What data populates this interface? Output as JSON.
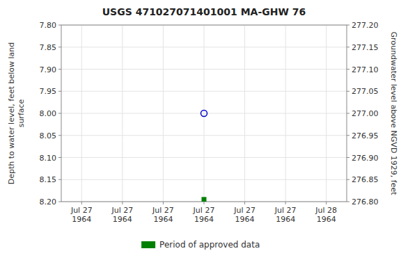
{
  "chart_data": {
    "type": "scatter",
    "title": "USGS 471027071401001 MA-GHW   76",
    "y_label": "Depth to water level, feet below land\n surface",
    "y2_label": "Groundwater level above NGVD 1929, feet",
    "categories": [
      "Jul 27\n1964",
      "Jul 27\n1964",
      "Jul 27\n1964",
      "Jul 27\n1964",
      "Jul 27\n1964",
      "Jul 27\n1964",
      "Jul 28\n1964"
    ],
    "ylim": [
      8.2,
      7.8
    ],
    "yticks": [
      {
        "value": 7.8,
        "label": "7.80"
      },
      7.85,
      {
        "value": 7.9,
        "label": "7.90"
      },
      7.95,
      {
        "value": 8,
        "label": "8.00"
      },
      8.05,
      {
        "value": 8.1,
        "label": "8.10"
      },
      8.15,
      {
        "value": 8.2,
        "label": "8.20"
      }
    ],
    "y2lim": [
      276.8,
      277.2
    ],
    "y2ticks": [
      {
        "value": 277.2,
        "label": "277.20"
      },
      277.15,
      {
        "value": 277.1,
        "label": "277.10"
      },
      277.05,
      {
        "value": 277,
        "label": "277.00"
      },
      276.95,
      {
        "value": 276.9,
        "label": "276.90"
      },
      276.85,
      {
        "value": 276.8,
        "label": "276.80"
      }
    ],
    "grid": true,
    "legend": "bottom",
    "series": [
      {
        "color": "#0000cc",
        "marker": "circle-open",
        "values": [
          null,
          null,
          null,
          8.0,
          null,
          null,
          null
        ]
      },
      {
        "name": "Period of approved data",
        "color": "#008000",
        "marker": "square",
        "values": [
          null,
          null,
          null,
          8.195,
          null,
          null,
          null
        ]
      }
    ]
  }
}
